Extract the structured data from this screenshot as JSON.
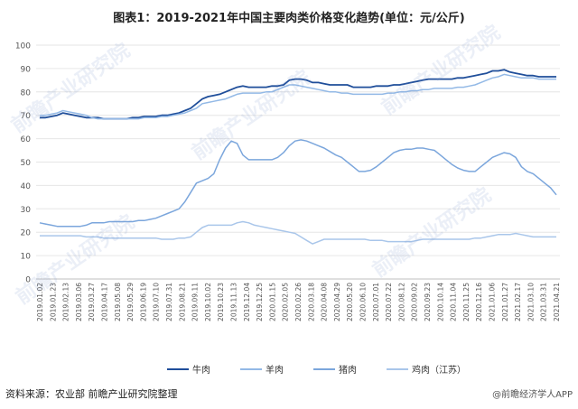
{
  "title": "图表1：2019-2021年中国主要肉类价格变化趋势(单位：元/公斤)",
  "source": "资料来源：农业部 前瞻产业研究院整理",
  "credit": "@前瞻经济学人APP",
  "watermark": "前瞻产业研究院",
  "colors": {
    "beef": "#1f4e9a",
    "mutton": "#93b9e6",
    "pork": "#7ba6dc",
    "chicken": "#a9c6ea"
  },
  "chart_data": {
    "type": "line",
    "ylim": [
      0,
      100
    ],
    "yticks": [
      0,
      10,
      20,
      30,
      40,
      50,
      60,
      70,
      80,
      90,
      100
    ],
    "grid": true,
    "legend_position": "bottom",
    "x_tick_labels": [
      "2019.01.02",
      "2019.01.23",
      "2019.02.13",
      "2019.03.06",
      "2019.03.27",
      "2019.04.17",
      "2019.05.08",
      "2019.05.29",
      "2019.06.19",
      "2019.07.10",
      "2019.07.31",
      "2019.08.21",
      "2019.09.11",
      "2019.10.02",
      "2019.10.23",
      "2019.11.13",
      "2019.12.04",
      "2019.12.25",
      "2020.01.15",
      "2020.02.05",
      "2020.02.26",
      "2020.03.18",
      "2020.04.08",
      "2020.04.29",
      "2020.05.20",
      "2020.06.10",
      "2020.07.01",
      "2020.07.22",
      "2020.08.12",
      "2020.09.02",
      "2020.09.23",
      "2020.10.14",
      "2020.11.04",
      "2020.11.25",
      "2020.12.16",
      "2021.01.06",
      "2021.01.27",
      "2021.02.17",
      "2021.03.10",
      "2021.03.31",
      "2021.04.21"
    ],
    "series": [
      {
        "name": "牛肉",
        "key": "beef",
        "values": [
          69,
          69,
          69.5,
          70,
          71,
          70.5,
          70,
          69.5,
          69,
          69,
          69,
          68.5,
          68.5,
          68.5,
          68.5,
          68.5,
          69,
          69,
          69.5,
          69.5,
          69.5,
          70,
          70,
          70.5,
          71,
          72,
          73,
          75,
          77,
          78,
          78.5,
          79,
          80,
          81,
          82,
          82.5,
          82,
          82,
          82,
          82,
          82.5,
          82.5,
          83,
          85,
          85.5,
          85.5,
          85,
          84,
          84,
          83.5,
          83,
          83,
          83,
          83,
          82,
          82,
          82,
          82,
          82.5,
          82.5,
          82.5,
          83,
          83,
          83.5,
          84,
          84.5,
          85,
          85.5,
          85.5,
          85.5,
          85.5,
          85.5,
          86,
          86,
          86.5,
          87,
          87.5,
          88,
          89,
          89,
          89.5,
          88.5,
          88,
          87.5,
          87,
          87,
          86.5,
          86.5,
          86.5,
          86.5
        ]
      },
      {
        "name": "羊肉",
        "key": "mutton",
        "values": [
          70,
          70,
          70.5,
          71,
          72,
          71.5,
          71,
          70.5,
          70,
          69,
          68.5,
          68.5,
          68.5,
          68.5,
          68.5,
          68.5,
          68.5,
          68.5,
          69,
          69,
          69,
          69.5,
          69.5,
          70,
          70.5,
          71,
          72,
          73,
          75,
          75.5,
          76,
          76.5,
          77,
          78,
          79,
          79.5,
          79.5,
          79.5,
          79.5,
          80,
          80,
          81,
          82,
          83,
          83,
          82.5,
          82,
          81.5,
          81,
          80.5,
          80,
          80,
          79.5,
          79.5,
          79,
          79,
          79,
          79,
          79,
          79,
          79.5,
          79.5,
          80,
          80,
          80.5,
          80.5,
          81,
          81,
          81.5,
          81.5,
          81.5,
          81.5,
          82,
          82,
          82.5,
          83,
          84,
          85,
          86,
          86.5,
          87.5,
          87,
          86.5,
          86,
          86,
          86,
          85.5,
          85.5,
          85.5,
          85.5
        ]
      },
      {
        "name": "猪肉",
        "key": "pork",
        "values": [
          24,
          23.5,
          23,
          22.5,
          22.5,
          22.5,
          22.5,
          22.5,
          23,
          24,
          24,
          24,
          24.5,
          24.5,
          24.5,
          24.5,
          24.5,
          25,
          25,
          25.5,
          26,
          27,
          28,
          29,
          30,
          33,
          37,
          41,
          42,
          43,
          45,
          51,
          56,
          59,
          58,
          53,
          51,
          51,
          51,
          51,
          51,
          52,
          54,
          57,
          59,
          59.5,
          59,
          58,
          57,
          56,
          54.5,
          53,
          52,
          50,
          48,
          46,
          46,
          46.5,
          48,
          50,
          52,
          54,
          55,
          55.5,
          55.5,
          56,
          56,
          55.5,
          55,
          53,
          51,
          49,
          47.5,
          46.5,
          46,
          46,
          48,
          50,
          52,
          53,
          54,
          53.5,
          52,
          48,
          46,
          45,
          43,
          41,
          39,
          36
        ]
      },
      {
        "name": "鸡肉（江苏）",
        "key": "chicken",
        "values": [
          18.5,
          18.5,
          18.5,
          18.5,
          18.5,
          18.5,
          18.5,
          18.5,
          18,
          18,
          18,
          17.5,
          17.5,
          17.5,
          17.5,
          17.5,
          17.5,
          17.5,
          17.5,
          17.5,
          17.5,
          17,
          17,
          17,
          17.5,
          17.5,
          18,
          20,
          22,
          23,
          23,
          23,
          23,
          23,
          24,
          24.5,
          24,
          23,
          22.5,
          22,
          21.5,
          21,
          20.5,
          20,
          19.5,
          18,
          16.5,
          15,
          16,
          17,
          17,
          17,
          17,
          17,
          17,
          17,
          17,
          16.5,
          16.5,
          16.5,
          16,
          16,
          16,
          16,
          16,
          16.5,
          17,
          17,
          17,
          17,
          17,
          17,
          17,
          17,
          17,
          17.5,
          17.5,
          18,
          18.5,
          19,
          19,
          19,
          19.5,
          19,
          18.5,
          18,
          18,
          18,
          18,
          18
        ]
      }
    ]
  }
}
